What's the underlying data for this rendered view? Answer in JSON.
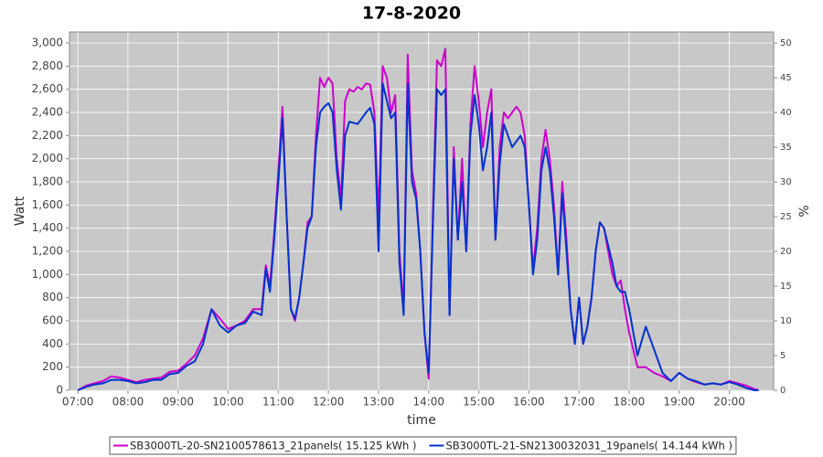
{
  "chart_data": {
    "type": "line",
    "title": "17-8-2020",
    "x_label": "time",
    "y_label": "Watt",
    "y2_label": "%",
    "x": [
      "07:00",
      "07:10",
      "07:20",
      "07:30",
      "07:40",
      "07:50",
      "08:00",
      "08:10",
      "08:20",
      "08:30",
      "08:40",
      "08:50",
      "09:00",
      "09:10",
      "09:20",
      "09:30",
      "09:40",
      "09:50",
      "10:00",
      "10:10",
      "10:20",
      "10:30",
      "10:40",
      "10:45",
      "10:50",
      "10:55",
      "11:00",
      "11:05",
      "11:10",
      "11:15",
      "11:20",
      "11:25",
      "11:30",
      "11:35",
      "11:40",
      "11:45",
      "11:50",
      "11:55",
      "12:00",
      "12:05",
      "12:10",
      "12:15",
      "12:20",
      "12:25",
      "12:30",
      "12:35",
      "12:40",
      "12:45",
      "12:50",
      "12:55",
      "13:00",
      "13:05",
      "13:10",
      "13:15",
      "13:20",
      "13:25",
      "13:30",
      "13:35",
      "13:40",
      "13:45",
      "13:50",
      "13:55",
      "14:00",
      "14:05",
      "14:10",
      "14:15",
      "14:20",
      "14:25",
      "14:30",
      "14:35",
      "14:40",
      "14:45",
      "14:50",
      "14:55",
      "15:00",
      "15:05",
      "15:10",
      "15:15",
      "15:20",
      "15:25",
      "15:30",
      "15:35",
      "15:40",
      "15:45",
      "15:50",
      "15:55",
      "16:00",
      "16:05",
      "16:10",
      "16:15",
      "16:20",
      "16:25",
      "16:30",
      "16:35",
      "16:40",
      "16:45",
      "16:50",
      "16:55",
      "17:00",
      "17:05",
      "17:10",
      "17:15",
      "17:20",
      "17:25",
      "17:30",
      "17:35",
      "17:40",
      "17:45",
      "17:50",
      "17:55",
      "18:00",
      "18:10",
      "18:20",
      "18:30",
      "18:40",
      "18:50",
      "19:00",
      "19:10",
      "19:20",
      "19:30",
      "19:40",
      "19:50",
      "20:00",
      "20:10",
      "20:20",
      "20:30",
      "20:35"
    ],
    "series": [
      {
        "name": "SB3000TL-20-SN2100578613_21panels( 15.125 kWh )",
        "color": "#cc00cc",
        "values": [
          0,
          40,
          60,
          80,
          120,
          110,
          90,
          70,
          90,
          100,
          110,
          160,
          170,
          230,
          300,
          450,
          700,
          620,
          530,
          560,
          600,
          700,
          700,
          1080,
          900,
          1350,
          1900,
          2450,
          1500,
          700,
          600,
          800,
          1100,
          1450,
          1500,
          2200,
          2700,
          2620,
          2700,
          2650,
          2000,
          1650,
          2500,
          2600,
          2580,
          2620,
          2600,
          2650,
          2640,
          2400,
          1500,
          2800,
          2700,
          2400,
          2550,
          1200,
          700,
          2900,
          1900,
          1700,
          1200,
          500,
          100,
          1500,
          2850,
          2800,
          2950,
          650,
          2100,
          1300,
          2000,
          1200,
          2300,
          2800,
          2500,
          2100,
          2400,
          2600,
          1300,
          2100,
          2400,
          2350,
          2400,
          2450,
          2400,
          2200,
          1600,
          1050,
          1400,
          2000,
          2250,
          2000,
          1600,
          1000,
          1800,
          1300,
          700,
          400,
          800,
          400,
          550,
          800,
          1200,
          1450,
          1400,
          1200,
          1000,
          900,
          950,
          700,
          500,
          200,
          200,
          150,
          120,
          80,
          150,
          100,
          70,
          50,
          60,
          50,
          80,
          60,
          40,
          10,
          0
        ]
      },
      {
        "name": "SB3000TL-21-SN2130032031_19panels( 14.144 kWh )",
        "color": "#0033cc",
        "values": [
          0,
          30,
          50,
          60,
          90,
          90,
          80,
          60,
          70,
          90,
          90,
          140,
          150,
          210,
          250,
          400,
          700,
          560,
          500,
          560,
          580,
          680,
          650,
          1050,
          850,
          1300,
          1800,
          2350,
          1500,
          700,
          620,
          800,
          1100,
          1400,
          1500,
          2100,
          2400,
          2450,
          2480,
          2400,
          1900,
          1560,
          2200,
          2320,
          2310,
          2300,
          2350,
          2400,
          2440,
          2300,
          1200,
          2650,
          2500,
          2350,
          2400,
          1100,
          650,
          2650,
          1800,
          1650,
          1200,
          500,
          150,
          1400,
          2600,
          2550,
          2600,
          650,
          2000,
          1300,
          1800,
          1200,
          2200,
          2550,
          2300,
          1900,
          2100,
          2400,
          1300,
          1950,
          2300,
          2200,
          2100,
          2150,
          2200,
          2100,
          1600,
          1000,
          1300,
          1900,
          2100,
          1900,
          1500,
          1000,
          1700,
          1200,
          700,
          400,
          800,
          400,
          550,
          800,
          1200,
          1450,
          1400,
          1250,
          1100,
          900,
          850,
          850,
          700,
          300,
          550,
          350,
          150,
          80,
          150,
          100,
          80,
          50,
          60,
          50,
          70,
          50,
          20,
          0,
          0
        ]
      }
    ],
    "xlim": [
      "06:50",
      "20:53"
    ],
    "xticks": [
      "07:00",
      "08:00",
      "09:00",
      "10:00",
      "11:00",
      "12:00",
      "13:00",
      "14:00",
      "15:00",
      "16:00",
      "17:00",
      "18:00",
      "19:00",
      "20:00"
    ],
    "ylim": [
      0,
      3095
    ],
    "yticks": [
      0,
      200,
      400,
      600,
      800,
      {
        "value": 1000,
        "label": "1,000"
      },
      {
        "value": 1200,
        "label": "1,200"
      },
      {
        "value": 1400,
        "label": "1,400"
      },
      {
        "value": 1600,
        "label": "1,600"
      },
      {
        "value": 1800,
        "label": "1,800"
      },
      {
        "value": 2000,
        "label": "2,000"
      },
      {
        "value": 2200,
        "label": "2,200"
      },
      {
        "value": 2400,
        "label": "2,400"
      },
      {
        "value": 2600,
        "label": "2,600"
      },
      {
        "value": 2800,
        "label": "2,800"
      },
      {
        "value": 3000,
        "label": "3,000"
      }
    ],
    "y2lim": [
      0,
      51.6
    ],
    "y2ticks": [
      0,
      5,
      10,
      15,
      20,
      25,
      30,
      35,
      40,
      45,
      50
    ],
    "grid": true,
    "plot_background": "#c8c8c8",
    "legend": "bottom"
  }
}
